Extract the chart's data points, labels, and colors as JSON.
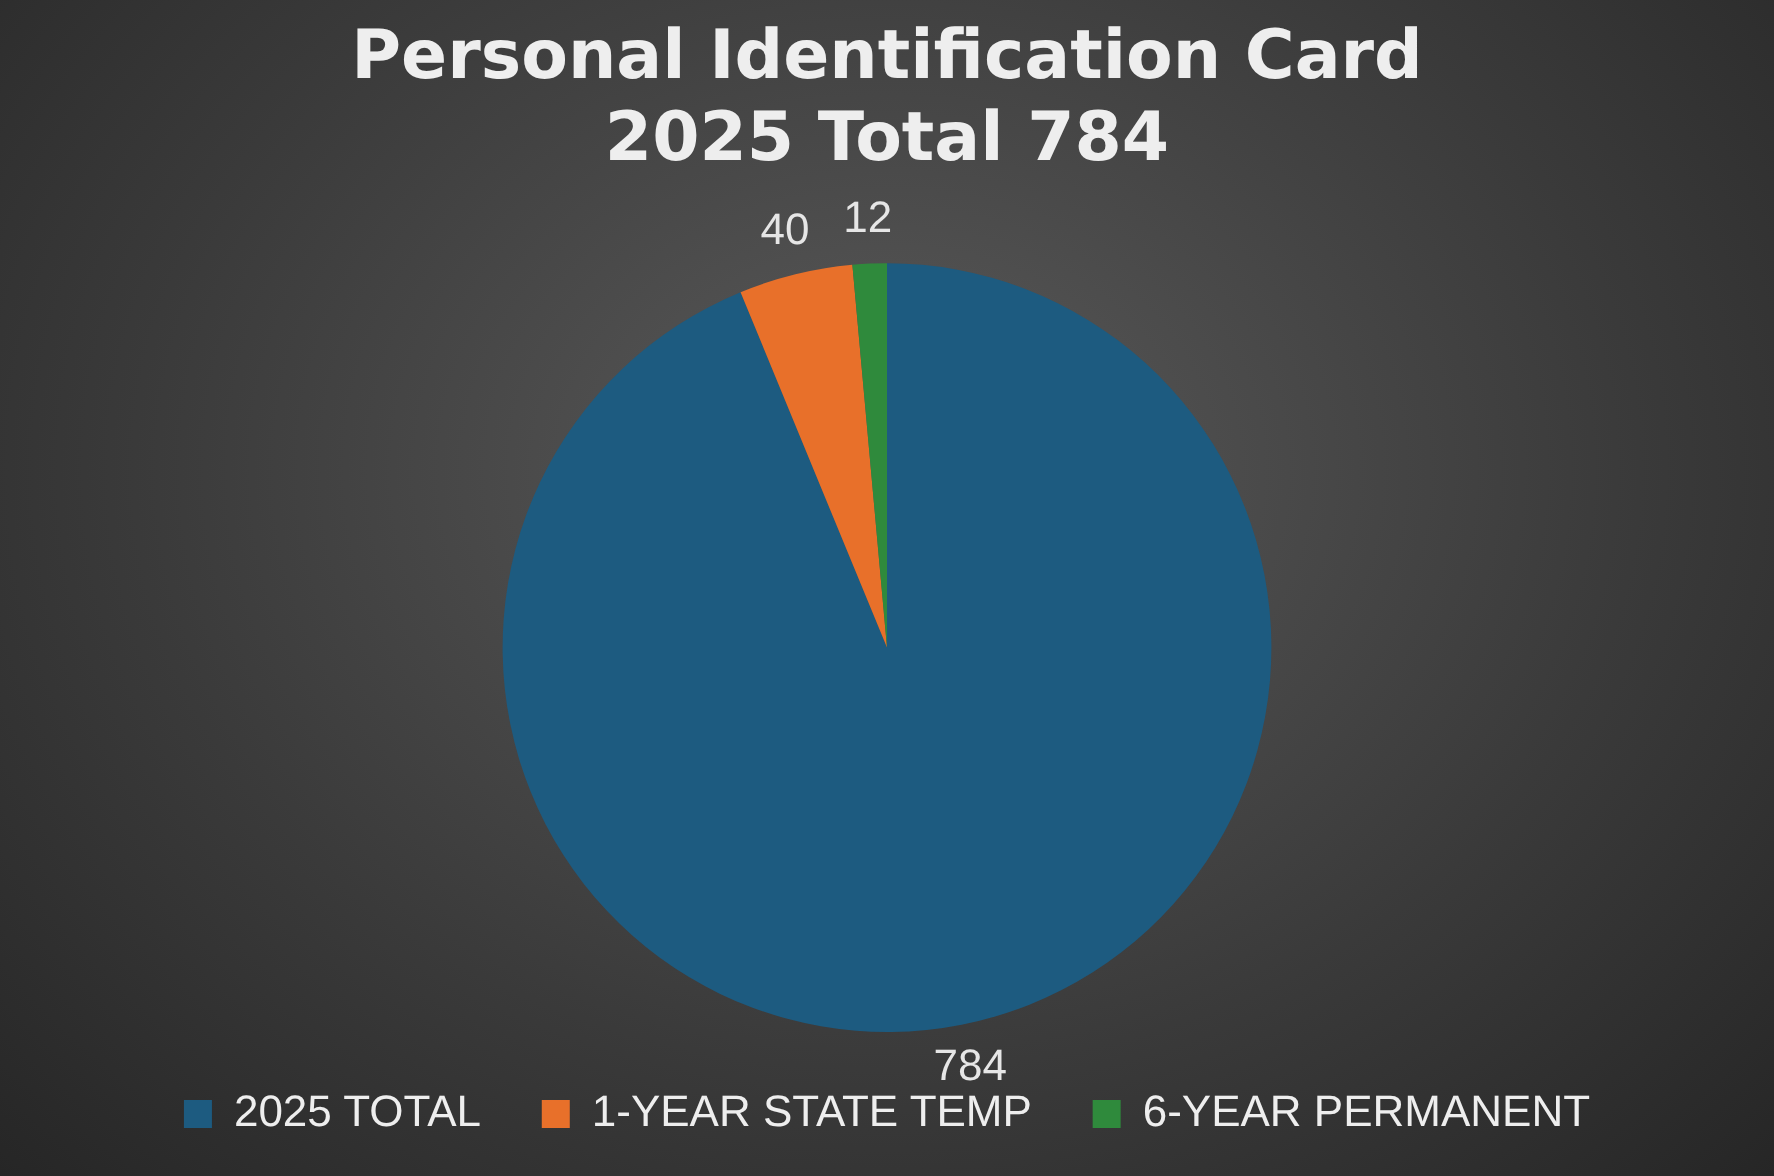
{
  "chart_data": {
    "type": "pie",
    "title": [
      "Personal Identification Card",
      "2025 Total 784"
    ],
    "categories": [
      "2025 TOTAL",
      "1-YEAR STATE TEMP",
      "6-YEAR PERMANENT"
    ],
    "values": [
      784,
      40,
      12
    ],
    "colors": [
      "#1d5b80",
      "#e8702a",
      "#2f8a3c"
    ],
    "data_labels": true,
    "legend": "bottom"
  }
}
